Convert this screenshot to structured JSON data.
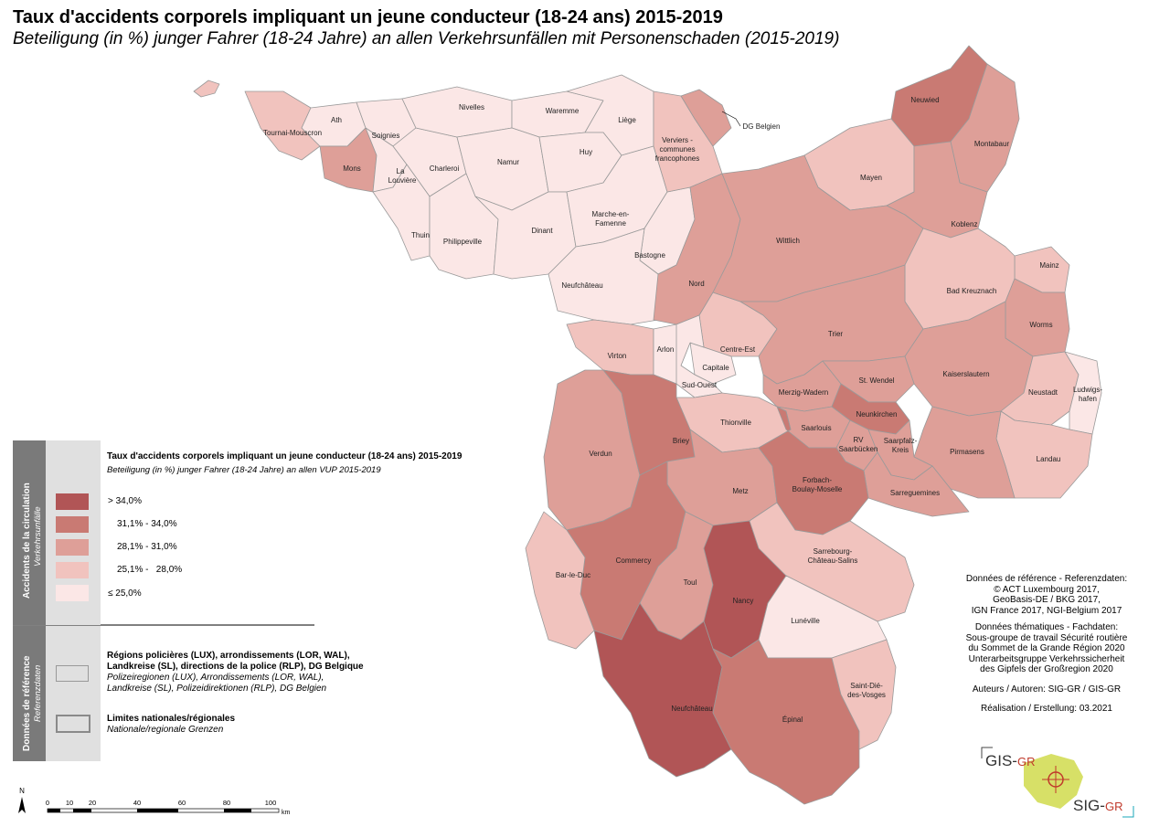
{
  "title": "Taux d'accidents corporels impliquant un jeune conducteur (18-24 ans) 2015-2019",
  "subtitle": "Beteiligung (in %) junger Fahrer (18-24 Jahre) an allen Verkehrsunfällen mit Personenschaden (2015-2019)",
  "colors": {
    "c1": "#fbe7e6",
    "c2": "#f1c3be",
    "c3": "#de9f98",
    "c4": "#c97a73",
    "c5": "#b15556",
    "border": "#9a9a9a",
    "legend_side": "#7a7a7a",
    "legend_panel": "#e0e0e0"
  },
  "legend": {
    "side_main": "Accidents de la circulation",
    "side_sub": "Verkehrsunfälle",
    "title": "Taux d'accidents corporels impliquant un jeune conducteur (18-24 ans) 2015-2019",
    "subtitle": "Beteiligung (in %) junger Fahrer (18-24 Jahre) an allen VUP 2015-2019",
    "classes": [
      {
        "label": "> 34,0%",
        "color": "#b15556"
      },
      {
        "label": "31,1% - 34,0%",
        "color": "#c97a73"
      },
      {
        "label": "28,1% - 31,0%",
        "color": "#de9f98"
      },
      {
        "label": "25,1% -   28,0%",
        "color": "#f1c3be"
      },
      {
        "label": "≤ 25,0%",
        "color": "#fbe7e6"
      }
    ]
  },
  "reference": {
    "side_main": "Données de référence",
    "side_sub": "Referenzdaten",
    "regions_bold_1": "Régions policières (LUX), arrondissements (LOR, WAL),",
    "regions_bold_2": "Landkreise (SL), directions de la police (RLP), DG Belgique",
    "regions_it_1": "Polizeiregionen (LUX), Arrondissements (LOR, WAL),",
    "regions_it_2": "Landkreise (SL), Polizeidirektionen (RLP), DG Belgien",
    "limits_bold": "Limites nationales/régionales",
    "limits_it": "Nationale/regionale Grenzen"
  },
  "credits": {
    "l1": "Données de référence - Referenzdaten:",
    "l2": "© ACT Luxembourg 2017,",
    "l3": "GeoBasis-DE / BKG 2017,",
    "l4": "IGN France 2017, NGI-Belgium 2017",
    "l5": "Données thématiques - Fachdaten:",
    "l6": "Sous-groupe de travail Sécurité routière",
    "l7": "du Sommet de la Grande Région 2020",
    "l8": "Unterarbeitsgruppe Verkehrssicherheit",
    "l9": "des Gipfels der Großregion 2020",
    "l10": "Auteurs / Autoren: SIG-GR / GIS-GR",
    "l11": "Réalisation / Erstellung: 03.2021"
  },
  "logo": {
    "top": "GIS-GR",
    "bottom": "SIG-GR"
  },
  "scale": {
    "ticks": [
      "0",
      "10",
      "20",
      "40",
      "60",
      "80",
      "100"
    ],
    "unit": "km",
    "north": "N"
  },
  "regions": [
    {
      "name": "Tournai-Mouscron",
      "cls": 2
    },
    {
      "name": "Ath",
      "cls": 1
    },
    {
      "name": "Mons",
      "cls": 3
    },
    {
      "name": "Soignies",
      "cls": 1
    },
    {
      "name": "La Louvière",
      "cls": 1
    },
    {
      "name": "Charleroi",
      "cls": 1
    },
    {
      "name": "Nivelles",
      "cls": 1
    },
    {
      "name": "Waremme",
      "cls": 1
    },
    {
      "name": "Liège",
      "cls": 1
    },
    {
      "name": "Namur",
      "cls": 1
    },
    {
      "name": "Huy",
      "cls": 1
    },
    {
      "name": "Thuin",
      "cls": 1
    },
    {
      "name": "Philippeville",
      "cls": 1
    },
    {
      "name": "Dinant",
      "cls": 1
    },
    {
      "name": "Marche-en-Famenne",
      "cls": 1
    },
    {
      "name": "Bastogne",
      "cls": 1
    },
    {
      "name": "Neufchâteau",
      "cls": 1
    },
    {
      "name": "Verviers - communes francophones",
      "cls": 2
    },
    {
      "name": "DG Belgien",
      "cls": 3
    },
    {
      "name": "Virton",
      "cls": 2
    },
    {
      "name": "Arlon",
      "cls": 1
    },
    {
      "name": "Nord",
      "cls": 3
    },
    {
      "name": "Centre-Est",
      "cls": 2
    },
    {
      "name": "Capitale",
      "cls": 1
    },
    {
      "name": "Sud-Ouest",
      "cls": 1
    },
    {
      "name": "Neuwied",
      "cls": 4
    },
    {
      "name": "Montabaur",
      "cls": 3
    },
    {
      "name": "Mayen",
      "cls": 2
    },
    {
      "name": "Koblenz",
      "cls": 3
    },
    {
      "name": "Wittlich",
      "cls": 3
    },
    {
      "name": "Mainz",
      "cls": 2
    },
    {
      "name": "Bad Kreuznach",
      "cls": 2
    },
    {
      "name": "Worms",
      "cls": 3
    },
    {
      "name": "Trier",
      "cls": 3
    },
    {
      "name": "Kaiserslautern",
      "cls": 3
    },
    {
      "name": "Neustadt",
      "cls": 2
    },
    {
      "name": "Ludwigs-hafen",
      "cls": 1
    },
    {
      "name": "Landau",
      "cls": 2
    },
    {
      "name": "Pirmasens",
      "cls": 3
    },
    {
      "name": "Merzig-Wadern",
      "cls": 3
    },
    {
      "name": "St. Wendel",
      "cls": 3
    },
    {
      "name": "Saarlouis",
      "cls": 3
    },
    {
      "name": "Neunkirchen",
      "cls": 4
    },
    {
      "name": "RV Saarbrücken",
      "cls": 3
    },
    {
      "name": "Saarpfalz-Kreis",
      "cls": 3
    },
    {
      "name": "Sarreguemines",
      "cls": 3
    },
    {
      "name": "Thionville",
      "cls": 2
    },
    {
      "name": "Verdun",
      "cls": 3
    },
    {
      "name": "Briey",
      "cls": 4
    },
    {
      "name": "Metz",
      "cls": 3
    },
    {
      "name": "Forbach-Boulay-Moselle",
      "cls": 4
    },
    {
      "name": "Commercy",
      "cls": 4
    },
    {
      "name": "Toul",
      "cls": 3
    },
    {
      "name": "Nancy",
      "cls": 5
    },
    {
      "name": "Sarrebourg-Château-Salins",
      "cls": 2
    },
    {
      "name": "Bar-le-Duc",
      "cls": 2
    },
    {
      "name": "Lunéville",
      "cls": 1
    },
    {
      "name": "Neufchâteau (FR)",
      "cls": 5
    },
    {
      "name": "Épinal",
      "cls": 4
    },
    {
      "name": "Saint-Dié-des-Vosges",
      "cls": 2
    }
  ]
}
